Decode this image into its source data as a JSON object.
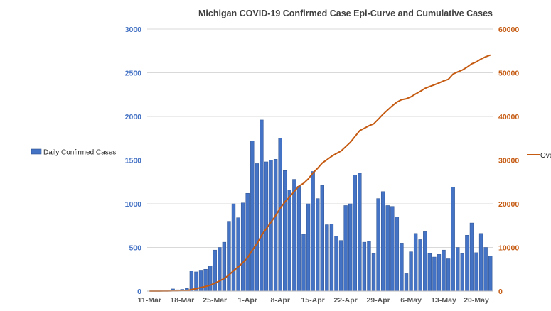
{
  "chart_data": {
    "type": "bar+line",
    "title": "Michigan COVID-19 Confirmed Case Epi-Curve and Cumulative Cases",
    "x_tick_labels": [
      "11-Mar",
      "18-Mar",
      "25-Mar",
      "1-Apr",
      "8-Apr",
      "15-Apr",
      "22-Apr",
      "29-Apr",
      "6-May",
      "13-May",
      "20-May"
    ],
    "ylim_left": [
      0,
      3000
    ],
    "ylim_right": [
      0,
      60000
    ],
    "yticks_left": [
      "0",
      "500",
      "1000",
      "1500",
      "2000",
      "2500",
      "3000"
    ],
    "yticks_right": [
      "0",
      "10000",
      "20000",
      "30000",
      "40000",
      "50000",
      "60000"
    ],
    "grid": true,
    "series": [
      {
        "name": "Daily Confirmed Cases",
        "type": "bar",
        "axis": "left",
        "color": "#4472c4",
        "legend_position": "left",
        "values": [
          2,
          2,
          5,
          8,
          12,
          25,
          15,
          20,
          30,
          230,
          220,
          240,
          250,
          290,
          470,
          500,
          560,
          800,
          1000,
          840,
          1010,
          1120,
          1720,
          1460,
          1960,
          1480,
          1500,
          1510,
          1750,
          1380,
          1160,
          1280,
          1200,
          650,
          1000,
          1370,
          1060,
          1210,
          760,
          770,
          630,
          580,
          980,
          1000,
          1330,
          1350,
          560,
          570,
          430,
          1060,
          1140,
          980,
          970,
          850,
          550,
          200,
          450,
          660,
          590,
          680,
          430,
          390,
          420,
          470,
          370,
          1190,
          500,
          430,
          640,
          780,
          440,
          660,
          500,
          400
        ]
      },
      {
        "name": "Ove",
        "type": "line",
        "axis": "right",
        "color": "#c55a11",
        "legend_position": "right",
        "values": [
          2,
          4,
          9,
          17,
          29,
          54,
          69,
          89,
          119,
          349,
          569,
          809,
          1059,
          1349,
          1819,
          2319,
          2879,
          3679,
          4679,
          5519,
          6529,
          7649,
          9369,
          10829,
          12789,
          14269,
          15769,
          17279,
          19029,
          20409,
          21569,
          22849,
          24049,
          24699,
          25699,
          27069,
          28129,
          29339,
          30099,
          30869,
          31499,
          32079,
          33059,
          34059,
          35389,
          36739,
          37299,
          37869,
          38299,
          39359,
          40499,
          41479,
          42449,
          43299,
          43849,
          44049,
          44499,
          45159,
          45749,
          46429,
          46859,
          47249,
          47669,
          48139,
          48509,
          49699,
          50199,
          50629,
          51269,
          52049,
          52489,
          53149,
          53649,
          54049
        ]
      }
    ]
  }
}
